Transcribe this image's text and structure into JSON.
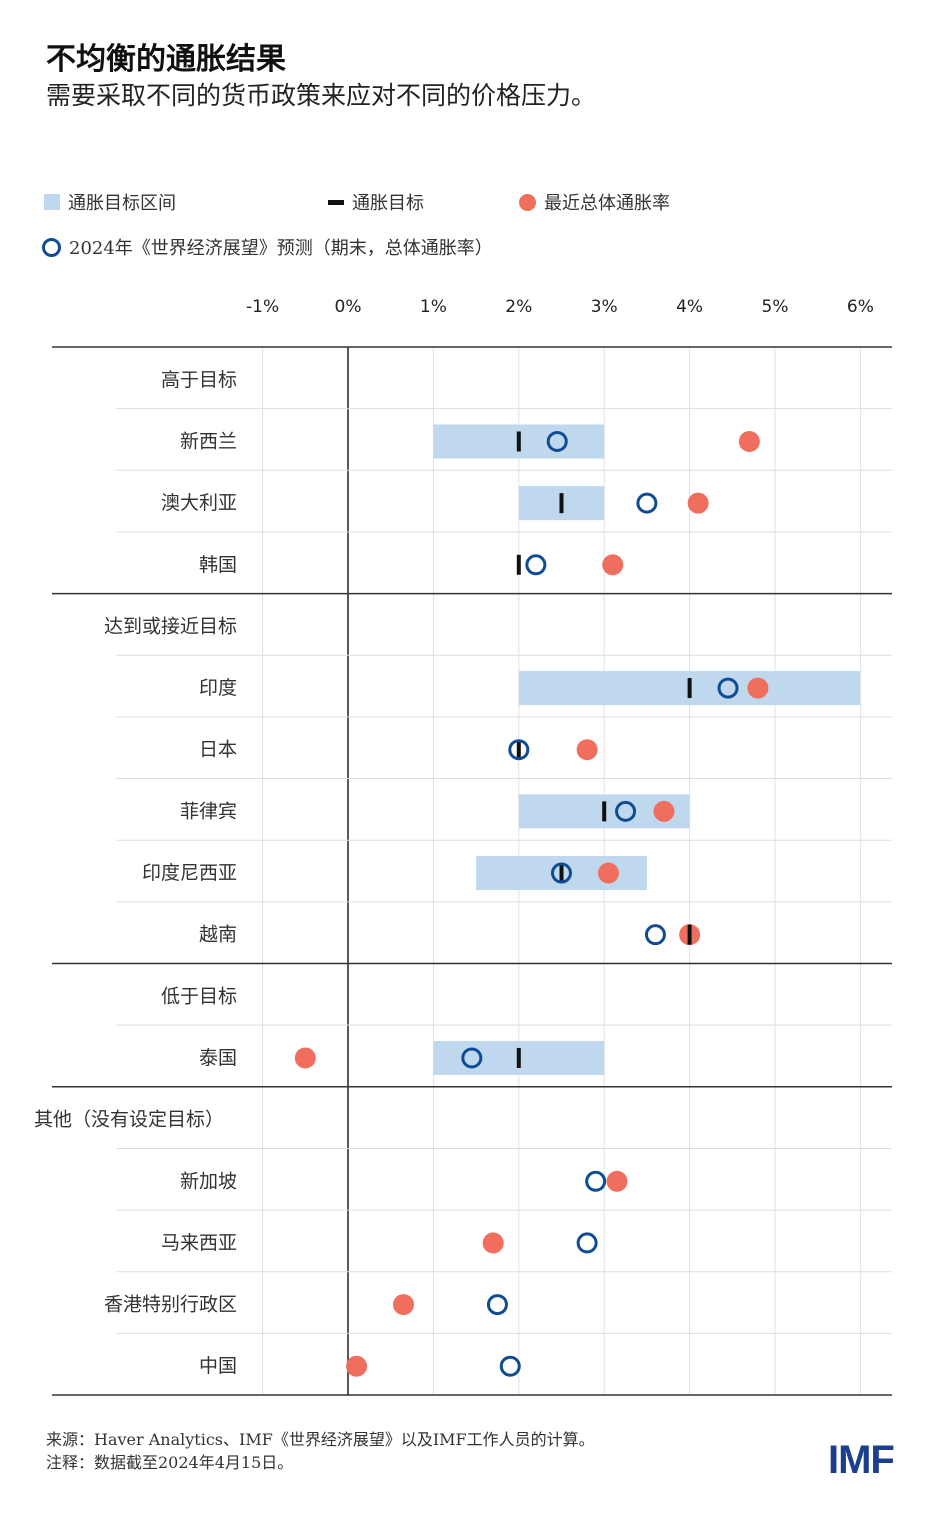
{
  "title": "不均衡的通胀结果",
  "subtitle": "需要采取不同的货币政策来应对不同的价格压力。",
  "legend": {
    "band": "通胀目标区间",
    "target": "通胀目标",
    "actual": "最近总体通胀率",
    "forecast": "2024年《世界经济展望》预测（期末，总体通胀率）"
  },
  "colors": {
    "band": "#bfd8ee",
    "target": "#111111",
    "actual": "#ef6e5e",
    "forecast": "#0f4c91"
  },
  "footer": {
    "source": "来源：Haver Analytics、IMF《世界经济展望》以及IMF工作人员的计算。",
    "note": "注释：数据截至2024年4月15日。"
  },
  "logo": "IMF",
  "chart_data": {
    "type": "dot-range",
    "x_ticks": [
      "-1%",
      "0%",
      "1%",
      "2%",
      "3%",
      "4%",
      "5%",
      "6%"
    ],
    "xlim": [
      -1,
      6
    ],
    "grid": true,
    "legend_position": "top",
    "rows": [
      {
        "group": "高于目标"
      },
      {
        "label": "新西兰",
        "band": [
          1,
          3
        ],
        "target": 2,
        "forecast": 2.45,
        "actual": 4.7
      },
      {
        "label": "澳大利亚",
        "band": [
          2,
          3
        ],
        "target": 2.5,
        "forecast": 3.5,
        "actual": 4.1
      },
      {
        "label": "韩国",
        "target": 2,
        "forecast": 2.2,
        "actual": 3.1
      },
      {
        "group": "达到或接近目标"
      },
      {
        "label": "印度",
        "band": [
          2,
          6
        ],
        "target": 4,
        "forecast": 4.45,
        "actual": 4.8
      },
      {
        "label": "日本",
        "target": 2,
        "forecast": 2.0,
        "actual": 2.8
      },
      {
        "label": "菲律宾",
        "band": [
          2,
          4
        ],
        "target": 3,
        "forecast": 3.25,
        "actual": 3.7
      },
      {
        "label": "印度尼西亚",
        "band": [
          1.5,
          3.5
        ],
        "target": 2.5,
        "forecast": 2.5,
        "actual": 3.05
      },
      {
        "label": "越南",
        "target": 4,
        "forecast": 3.6,
        "actual": 4.0
      },
      {
        "group": "低于目标"
      },
      {
        "label": "泰国",
        "band": [
          1,
          3
        ],
        "target": 2,
        "forecast": 1.45,
        "actual": -0.5
      },
      {
        "group": "其他（没有设定目标）"
      },
      {
        "label": "新加坡",
        "forecast": 2.9,
        "actual": 3.15
      },
      {
        "label": "马来西亚",
        "forecast": 2.8,
        "actual": 1.7
      },
      {
        "label": "香港特别行政区",
        "forecast": 1.75,
        "actual": 0.65
      },
      {
        "label": "中国",
        "forecast": 1.9,
        "actual": 0.1
      }
    ]
  }
}
